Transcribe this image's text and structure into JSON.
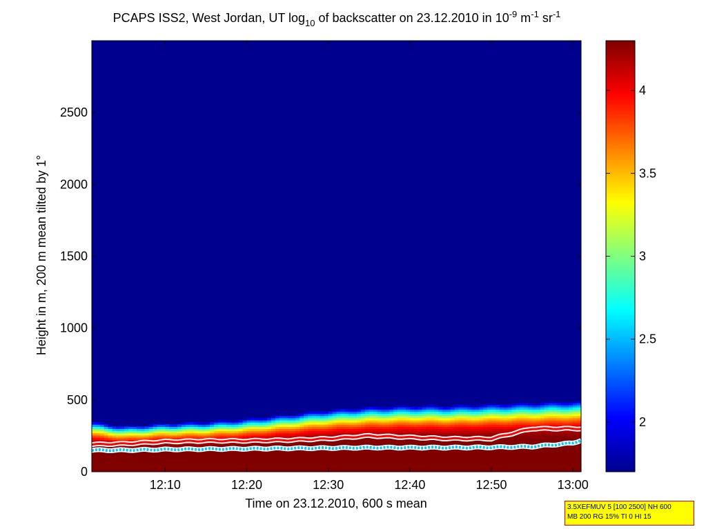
{
  "title": {
    "pre": "PCAPS ISS2, West Jordan, UT log",
    "sub": "10",
    "mid": " of backscatter on 23.12.2010 in 10",
    "sup1": "-9",
    "mid2": " m",
    "sup2": "-1",
    "mid3": " sr",
    "sup3": "-1"
  },
  "info_box": {
    "line1": "3.5XEFMUV 5 [100 2500] NH 600",
    "line2": "MB 200 RG 15% TI 0 HI 15"
  },
  "colorbar": {
    "ticks": [
      "2",
      "2.5",
      "3",
      "3.5",
      "4"
    ],
    "range": [
      1.7,
      4.3
    ],
    "colormap": "jet"
  },
  "chart_data": {
    "type": "heatmap",
    "xlabel": "Time on 23.12.2010, 600 s mean",
    "ylabel": "Height in m, 200 m mean tilted by 1°",
    "xticks": [
      "12:10",
      "12:20",
      "12:30",
      "12:40",
      "12:50",
      "13:00"
    ],
    "yticks": [
      "0",
      "500",
      "1000",
      "1500",
      "2000",
      "2500"
    ],
    "xlim": [
      "12:01",
      "13:01"
    ],
    "ylim": [
      0,
      3000
    ],
    "clim": [
      1.7,
      4.3
    ],
    "background_value": 1.75,
    "profile": {
      "time": [
        "12:01",
        "12:05",
        "12:10",
        "12:15",
        "12:20",
        "12:25",
        "12:30",
        "12:35",
        "12:40",
        "12:45",
        "12:50",
        "12:55",
        "13:00",
        "13:01"
      ],
      "aerosol_top_m": [
        330,
        300,
        320,
        330,
        350,
        380,
        410,
        430,
        440,
        440,
        450,
        460,
        470,
        470
      ],
      "red_line_m": [
        190,
        195,
        210,
        215,
        215,
        220,
        230,
        250,
        240,
        230,
        230,
        300,
        300,
        300
      ],
      "cyan_line_m": [
        150,
        150,
        155,
        158,
        160,
        163,
        165,
        168,
        168,
        168,
        170,
        175,
        200,
        220
      ]
    }
  }
}
